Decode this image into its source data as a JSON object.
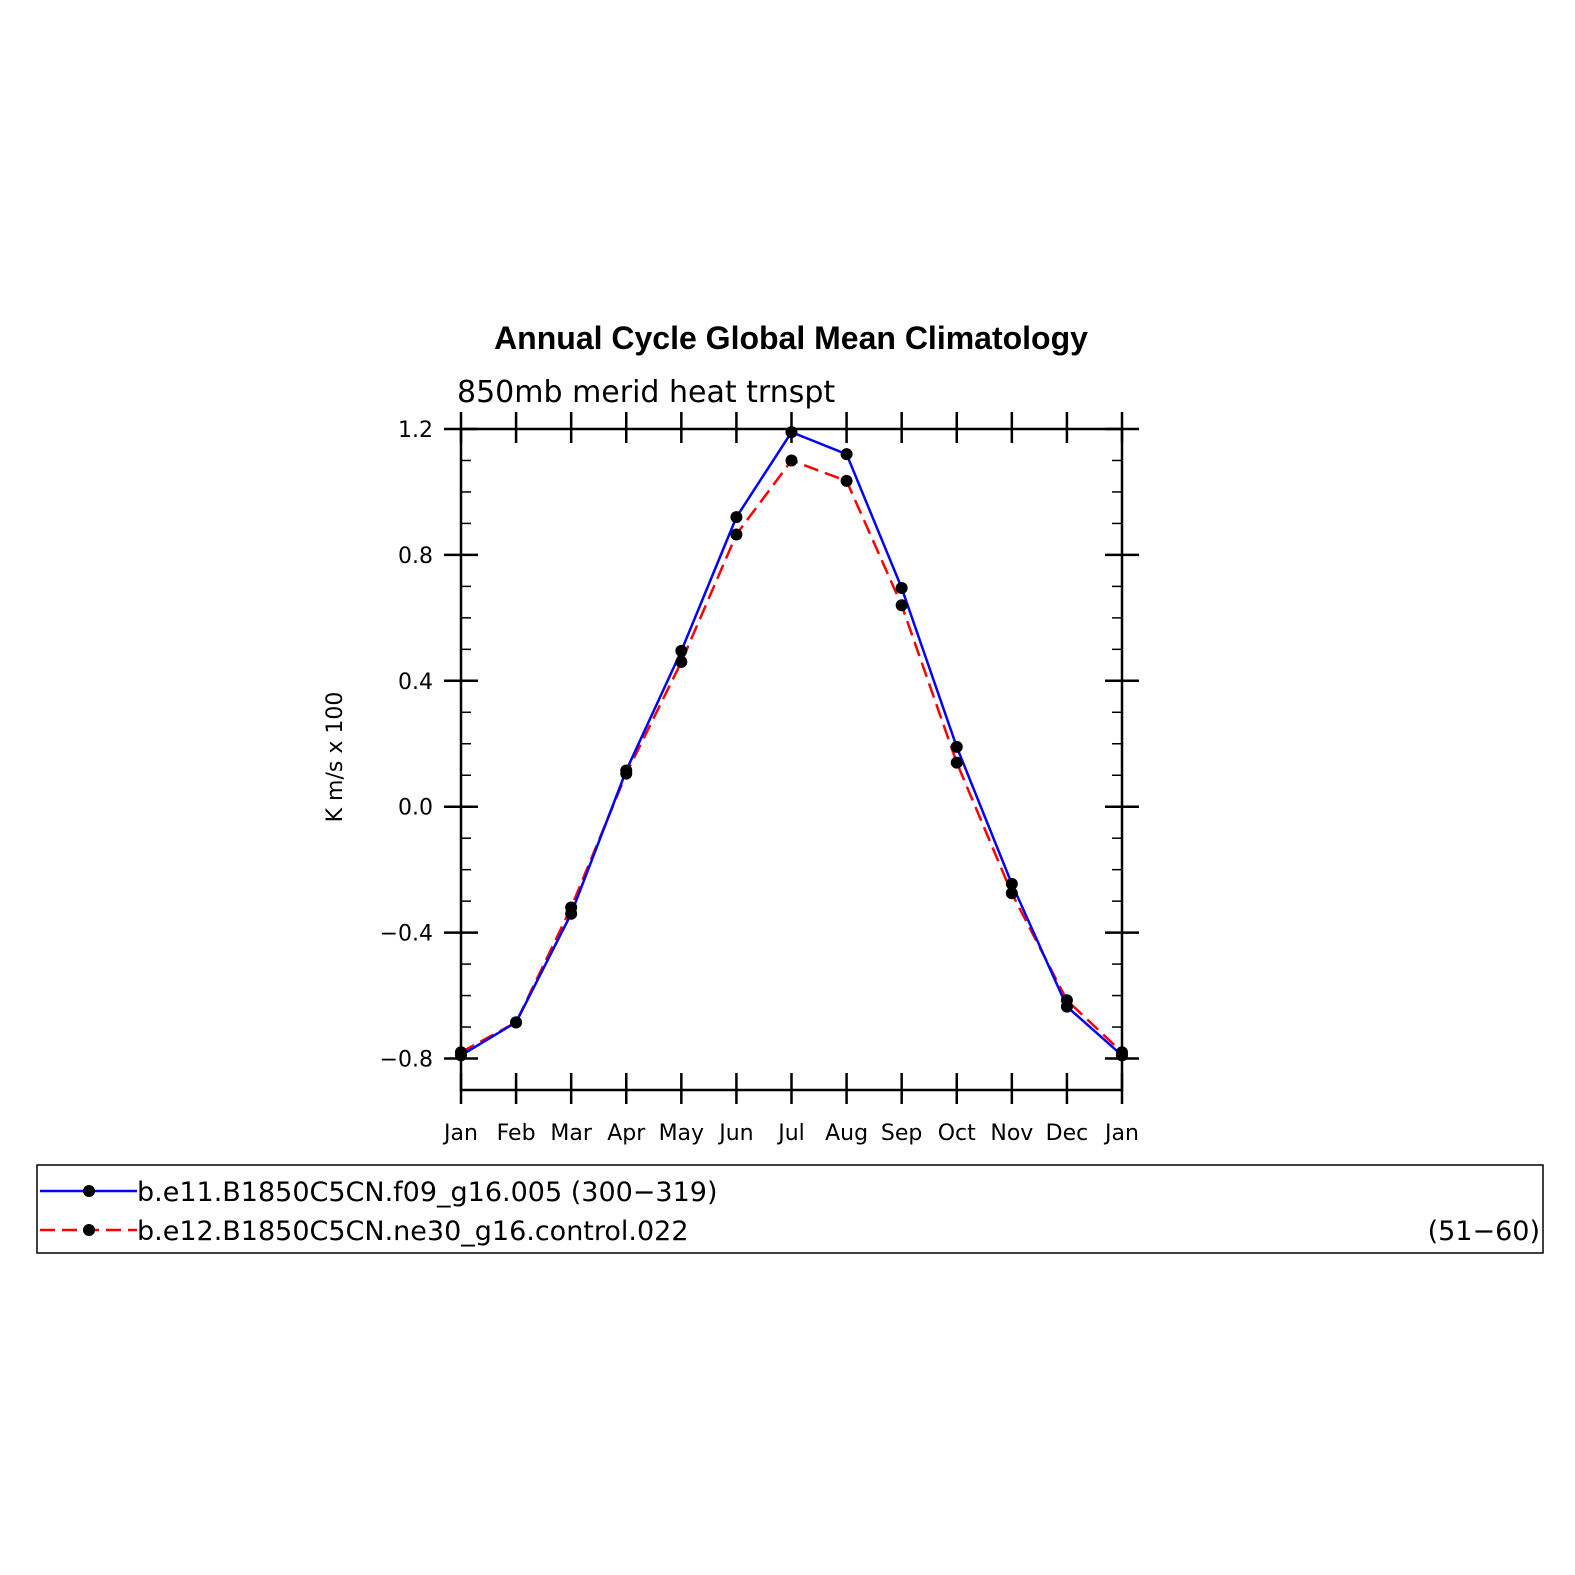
{
  "chart_data": {
    "type": "line",
    "title": "Annual Cycle Global Mean Climatology",
    "subtitle": "850mb merid heat trnspt",
    "ylabel": "K m/s x 100",
    "xlabel": "",
    "categories": [
      "Jan",
      "Feb",
      "Mar",
      "Apr",
      "May",
      "Jun",
      "Jul",
      "Aug",
      "Sep",
      "Oct",
      "Nov",
      "Dec",
      "Jan"
    ],
    "ylim": [
      -0.9,
      1.2
    ],
    "yticks": [
      -0.8,
      -0.4,
      0.0,
      0.4,
      0.8,
      1.2
    ],
    "ytick_labels": [
      "−0.8",
      "−0.4",
      "0.0",
      "0.4",
      "0.8",
      "1.2"
    ],
    "grid": false,
    "legend_position": "bottom",
    "series": [
      {
        "name": "b.e11.B1850C5CN.f09_g16.005 (300−319)",
        "color": "#0000ff",
        "style": "solid",
        "values": [
          -0.79,
          -0.685,
          -0.34,
          0.115,
          0.495,
          0.92,
          1.19,
          1.12,
          0.695,
          0.19,
          -0.245,
          -0.635,
          -0.79
        ]
      },
      {
        "name": "b.e12.B1850C5CN.ne30_g16.control.022",
        "name_suffix": "(51−60)",
        "color": "#ff0000",
        "style": "dashed",
        "values": [
          -0.78,
          -0.685,
          -0.32,
          0.105,
          0.46,
          0.865,
          1.1,
          1.035,
          0.64,
          0.14,
          -0.275,
          -0.615,
          -0.78
        ]
      }
    ]
  }
}
